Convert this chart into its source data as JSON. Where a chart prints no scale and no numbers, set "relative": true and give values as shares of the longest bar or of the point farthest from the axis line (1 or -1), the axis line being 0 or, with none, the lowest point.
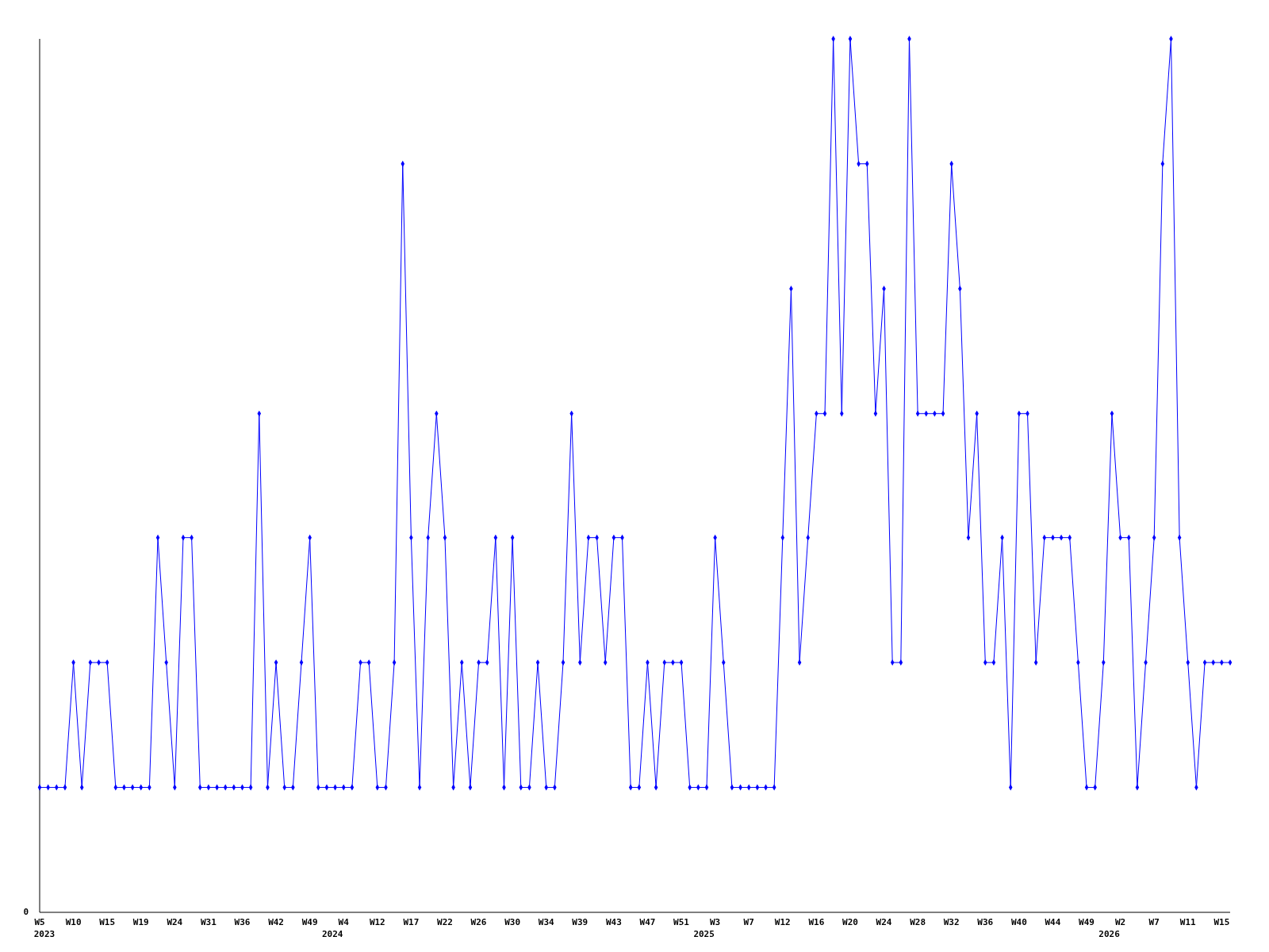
{
  "chart_data": {
    "type": "line",
    "relative": true,
    "color": "#0000ff",
    "marker": "diamond",
    "line_style": "solid",
    "categories": [
      "W5",
      null,
      null,
      null,
      "W10",
      null,
      null,
      null,
      "W15",
      null,
      null,
      null,
      "W19",
      null,
      null,
      null,
      "W24",
      null,
      null,
      null,
      "W31",
      null,
      null,
      null,
      "W36",
      null,
      null,
      null,
      "W42",
      null,
      null,
      null,
      "W49",
      null,
      null,
      null,
      "W4",
      null,
      null,
      null,
      "W12",
      null,
      null,
      null,
      "W17",
      null,
      null,
      null,
      "W22",
      null,
      null,
      null,
      "W26",
      null,
      null,
      null,
      "W30",
      null,
      null,
      null,
      "W34",
      null,
      null,
      null,
      "W39",
      null,
      null,
      null,
      "W43",
      null,
      null,
      null,
      "W47",
      null,
      null,
      null,
      "W51",
      null,
      null,
      null,
      "W3",
      null,
      null,
      null,
      "W7",
      null,
      null,
      null,
      "W12",
      null,
      null,
      null,
      "W16",
      null,
      null,
      null,
      "W20",
      null,
      null,
      null,
      "W24",
      null,
      null,
      null,
      "W28",
      null,
      null,
      null,
      "W32",
      null,
      null,
      null,
      "W36",
      null,
      null,
      null,
      "W40",
      null,
      null,
      null,
      "W44",
      null,
      null,
      null,
      "W49",
      null,
      null,
      null,
      "W2",
      null,
      null,
      null,
      "W7",
      null,
      null,
      null,
      "W11",
      null,
      null,
      null,
      "W15",
      null
    ],
    "values": [
      0.143,
      0.143,
      0.143,
      0.143,
      0.286,
      0.143,
      0.286,
      0.286,
      0.286,
      0.143,
      0.143,
      0.143,
      0.143,
      0.143,
      0.429,
      0.286,
      0.143,
      0.429,
      0.429,
      0.143,
      0.143,
      0.143,
      0.143,
      0.143,
      0.143,
      0.143,
      0.571,
      0.143,
      0.286,
      0.143,
      0.143,
      0.286,
      0.429,
      0.143,
      0.143,
      0.143,
      0.143,
      0.143,
      0.286,
      0.286,
      0.143,
      0.143,
      0.286,
      0.857,
      0.429,
      0.143,
      0.429,
      0.571,
      0.429,
      0.143,
      0.286,
      0.143,
      0.286,
      0.286,
      0.429,
      0.143,
      0.429,
      0.143,
      0.143,
      0.286,
      0.143,
      0.143,
      0.286,
      0.571,
      0.286,
      0.429,
      0.429,
      0.286,
      0.429,
      0.429,
      0.143,
      0.143,
      0.286,
      0.143,
      0.286,
      0.286,
      0.286,
      0.143,
      0.143,
      0.143,
      0.429,
      0.286,
      0.143,
      0.143,
      0.143,
      0.143,
      0.143,
      0.143,
      0.429,
      0.714,
      0.286,
      0.429,
      0.571,
      0.571,
      1,
      0.571,
      1,
      0.857,
      0.857,
      0.571,
      0.714,
      0.286,
      0.286,
      1,
      0.571,
      0.571,
      0.571,
      0.571,
      0.857,
      0.714,
      0.429,
      0.571,
      0.286,
      0.286,
      0.429,
      0.143,
      0.571,
      0.571,
      0.286,
      0.429,
      0.429,
      0.429,
      0.429,
      0.286,
      0.143,
      0.143,
      0.286,
      0.571,
      0.429,
      0.429,
      0.143,
      0.286,
      0.429,
      0.857,
      1,
      0.429,
      0.286,
      0.143,
      0.286,
      0.286,
      0.286,
      0.286
    ],
    "annotations": [
      "0",
      "2023",
      "2024",
      "2025",
      "2026"
    ]
  }
}
